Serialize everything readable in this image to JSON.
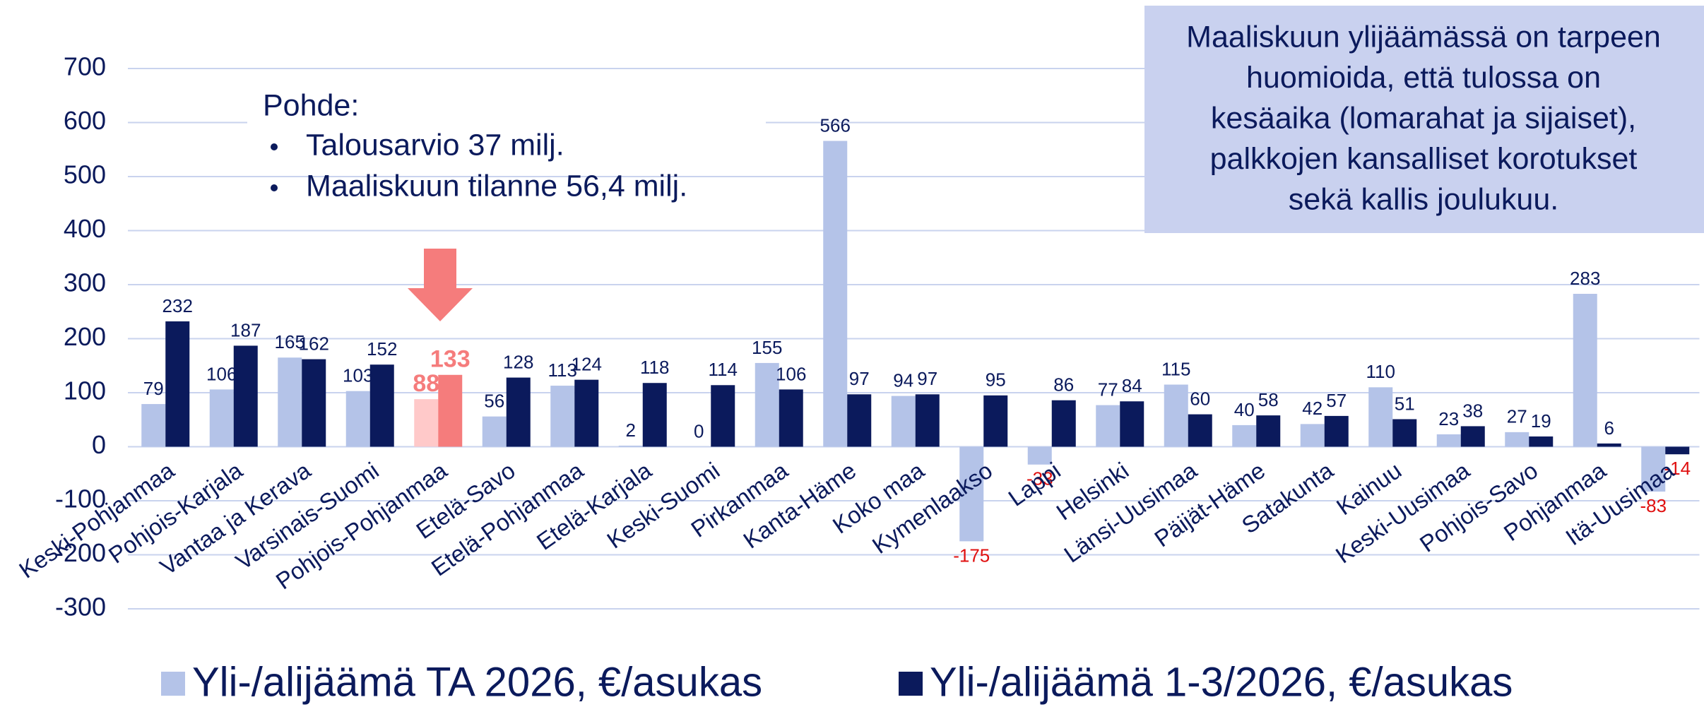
{
  "chart_data": {
    "type": "bar",
    "categories": [
      "Keski-Pohjanmaa",
      "Pohjois-Karjala",
      "Vantaa ja Kerava",
      "Varsinais-Suomi",
      "Pohjois-Pohjanmaa",
      "Etelä-Savo",
      "Etelä-Pohjanmaa",
      "Etelä-Karjala",
      "Keski-Suomi",
      "Pirkanmaa",
      "Kanta-Häme",
      "Koko maa",
      "Kymenlaakso",
      "Lappi",
      "Helsinki",
      "Länsi-Uusimaa",
      "Päijät-Häme",
      "Satakunta",
      "Kainuu",
      "Keski-Uusimaa",
      "Pohjois-Savo",
      "Pohjanmaa",
      "Itä-Uusimaa"
    ],
    "series": [
      {
        "name": "Yli-/alijäämä TA 2026, €/asukas",
        "color": "#b4c3e8",
        "values": [
          79,
          106,
          165,
          103,
          88,
          56,
          113,
          2,
          0,
          155,
          566,
          94,
          -175,
          -33,
          77,
          115,
          40,
          42,
          110,
          23,
          27,
          283,
          -83
        ]
      },
      {
        "name": "Yli-/alijäämä 1-3/2026, €/asukas",
        "color": "#0b1a5c",
        "values": [
          232,
          187,
          162,
          152,
          133,
          128,
          124,
          118,
          114,
          106,
          97,
          97,
          95,
          86,
          84,
          60,
          58,
          57,
          51,
          38,
          19,
          6,
          -14
        ]
      }
    ],
    "highlight_category": "Pohjois-Pohjanmaa",
    "highlight_colors": [
      "#ffc9c9",
      "#f57c7c"
    ],
    "negative_label_color": "#e01010",
    "ylim": [
      -300,
      700
    ],
    "yticks": [
      -300,
      -200,
      -100,
      0,
      100,
      200,
      300,
      400,
      500,
      600,
      700
    ],
    "grid": true,
    "legend": "bottom",
    "annotations": {
      "pohde_title": "Pohde:",
      "pohde_items": [
        "Talousarvio 37 milj.",
        "Maaliskuun tilanne 56,4 milj."
      ],
      "note_lines": [
        "Maaliskuun ylijäämässä on tarpeen",
        "huomioida, että tulossa on",
        "kesäaika (lomarahat ja sijaiset),",
        "palkkojen kansalliset korotukset",
        "sekä kallis joulukuu."
      ]
    }
  }
}
